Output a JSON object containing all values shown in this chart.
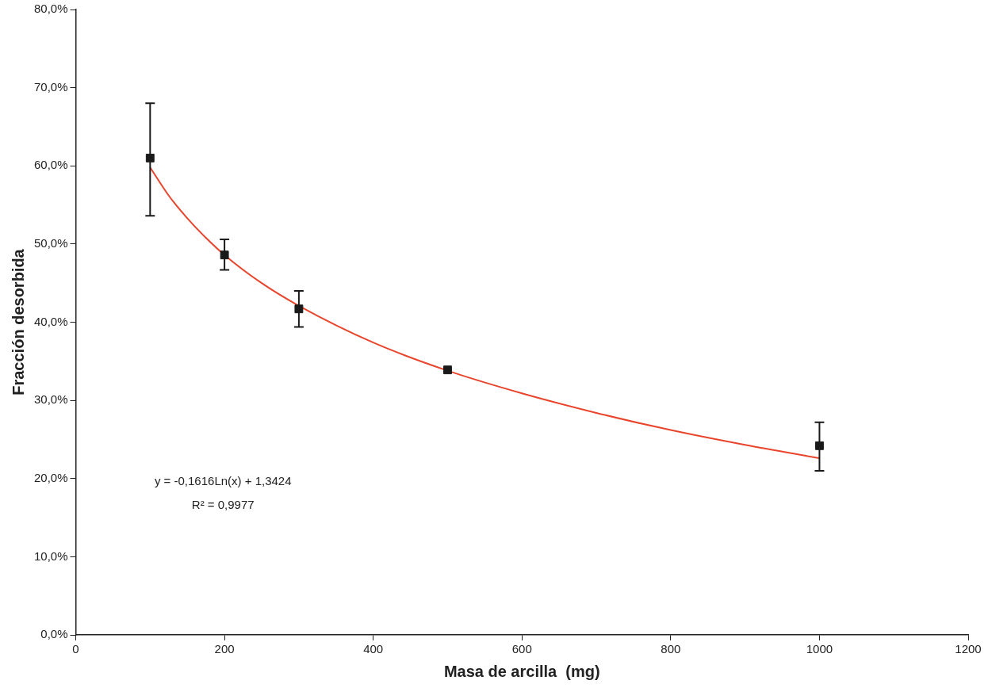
{
  "chart_data": {
    "type": "scatter",
    "xlabel": "Masa de arcilla  (mg)",
    "ylabel": "Fracción desorbida",
    "xlim": [
      0,
      1200
    ],
    "xticks": [
      0,
      200,
      400,
      600,
      800,
      1000,
      1200
    ],
    "ylim": [
      0,
      80
    ],
    "yticks": [
      {
        "value": 0,
        "label": "0,0%"
      },
      {
        "value": 10,
        "label": "10,0%"
      },
      {
        "value": 20,
        "label": "20,0%"
      },
      {
        "value": 30,
        "label": "30,0%"
      },
      {
        "value": 40,
        "label": "40,0%"
      },
      {
        "value": 50,
        "label": "50,0%"
      },
      {
        "value": 60,
        "label": "60,0%"
      },
      {
        "value": 70,
        "label": "70,0%"
      },
      {
        "value": 80,
        "label": "80,0%"
      }
    ],
    "grid": false,
    "legend": false,
    "marker": "square",
    "series": [
      {
        "color": "#1a1a1a",
        "x": [
          100,
          200,
          300,
          500,
          1000
        ],
        "values": [
          61.0,
          48.6,
          41.7,
          33.9,
          24.2
        ],
        "errors": [
          [
            53.6,
            68.0
          ],
          [
            46.7,
            50.6
          ],
          [
            39.4,
            44.0
          ],
          null,
          [
            21.0,
            27.2
          ]
        ]
      },
      {
        "type": "line",
        "color": "#e8452c",
        "marker": "none",
        "line_style": "solid",
        "x": [
          100,
          125,
          150,
          175,
          200,
          250,
          300,
          400,
          500,
          600,
          700,
          800,
          900,
          1000
        ],
        "values": [
          59.8,
          56.2,
          53.3,
          50.8,
          48.6,
          45.0,
          42.1,
          37.4,
          33.8,
          30.9,
          28.4,
          26.2,
          24.3,
          22.6
        ]
      }
    ],
    "annotations": [
      "y = -0,1616Ln(x) + 1,3424",
      "R² = 0,9977"
    ]
  }
}
